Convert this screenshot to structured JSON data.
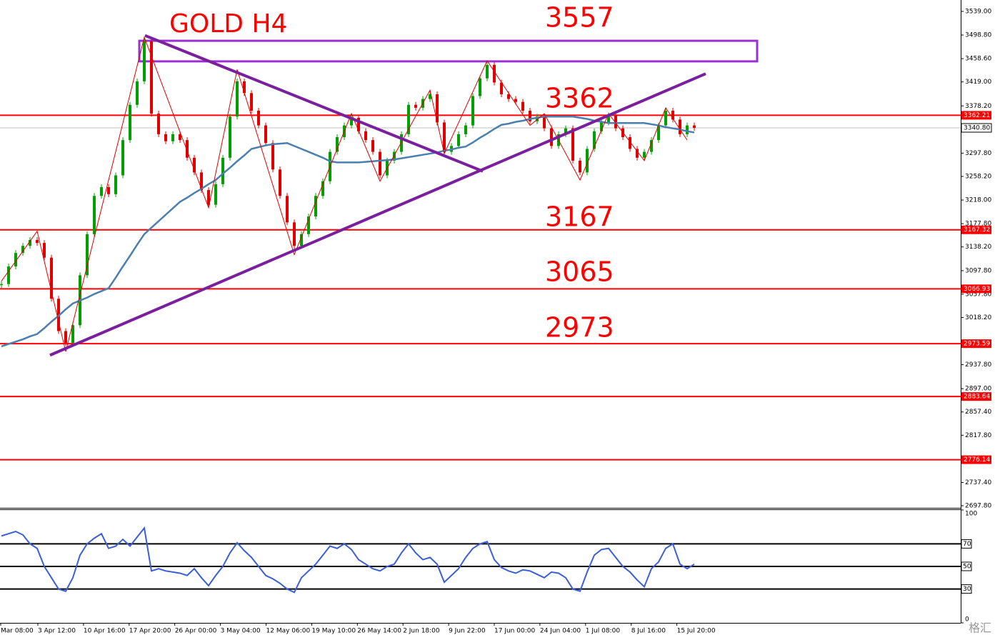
{
  "chart_data": {
    "type": "candlestick",
    "annotations": [
      "GOLD H4",
      "3557",
      "3362",
      "3167",
      "3065",
      "2973"
    ],
    "ylim": [
      2695.4,
      3558.4
    ],
    "yticks": [
      {
        "value": 3539,
        "label": "3539.00"
      },
      {
        "value": 3498.8,
        "label": "3498.80"
      },
      {
        "value": 3458.6,
        "label": "3458.60"
      },
      {
        "value": 3419,
        "label": "3419.00"
      },
      {
        "value": 3378.2,
        "label": "3378.20"
      },
      {
        "value": 3297.8,
        "label": "3297.80"
      },
      {
        "value": 3258.2,
        "label": "3258.20"
      },
      {
        "value": 3218,
        "label": "3218.00"
      },
      {
        "value": 3177.8,
        "label": "3177.80"
      },
      {
        "value": 3138.2,
        "label": "3138.20"
      },
      {
        "value": 3097.8,
        "label": "3097.80"
      },
      {
        "value": 3057.8,
        "label": "3057.80"
      },
      {
        "value": 3018.2,
        "label": "3018.20"
      },
      {
        "value": 2937.8,
        "label": "2937.80"
      },
      {
        "value": 2897,
        "label": "2897.00"
      },
      {
        "value": 2857.4,
        "label": "2857.40"
      },
      {
        "value": 2817.8,
        "label": "2817.80"
      },
      {
        "value": 2737.4,
        "label": "2737.40"
      },
      {
        "value": 2697.8,
        "label": "2697.80"
      }
    ],
    "x_labels": [
      "Mar 08:00",
      "3 Apr 12:00",
      "10 Apr 16:00",
      "17 Apr 20:00",
      "26 Apr 00:00",
      "3 May 04:00",
      "12 May 06:00",
      "19 May 10:00",
      "26 May 14:00",
      "2 Jun 18:00",
      "9 Jun 22:00",
      "17 Jun 00:00",
      "24 Jun 04:00",
      "1 Jul 08:00",
      "8 Jul 16:00",
      "15 Jul 20:00"
    ],
    "up_color": "#00a000",
    "down_color": "#e00000",
    "closes": [
      3075,
      3105,
      3128,
      3140,
      3150,
      3145,
      3120,
      3050,
      2995,
      2975,
      3005,
      3090,
      3160,
      3225,
      3240,
      3228,
      3260,
      3320,
      3380,
      3420,
      3488,
      3365,
      3330,
      3318,
      3330,
      3320,
      3290,
      3265,
      3235,
      3210,
      3245,
      3290,
      3360,
      3420,
      3400,
      3370,
      3345,
      3315,
      3270,
      3225,
      3180,
      3140,
      3160,
      3190,
      3225,
      3250,
      3300,
      3325,
      3345,
      3358,
      3335,
      3320,
      3300,
      3260,
      3285,
      3300,
      3330,
      3380,
      3375,
      3390,
      3398,
      3350,
      3300,
      3310,
      3330,
      3345,
      3395,
      3425,
      3448,
      3418,
      3398,
      3390,
      3385,
      3370,
      3352,
      3360,
      3340,
      3310,
      3330,
      3340,
      3285,
      3265,
      3305,
      3335,
      3350,
      3362,
      3340,
      3325,
      3305,
      3290,
      3300,
      3320,
      3345,
      3370,
      3355,
      3330,
      3345,
      3340.8
    ],
    "ma": {
      "color": "#4a7fb0",
      "values": [
        2969,
        2973,
        2977,
        2981,
        2986,
        2990,
        3000,
        3011,
        3021,
        3032,
        3042,
        3047,
        3052,
        3058,
        3063,
        3068,
        3086,
        3105,
        3123,
        3142,
        3160,
        3171,
        3182,
        3193,
        3204,
        3215,
        3222,
        3230,
        3237,
        3245,
        3252,
        3263,
        3273,
        3284,
        3294,
        3305,
        3308,
        3311,
        3313,
        3314,
        3315,
        3310,
        3305,
        3300,
        3295,
        3290,
        3284,
        3282,
        3282,
        3282,
        3282,
        3283,
        3284,
        3285,
        3286,
        3287,
        3289,
        3291,
        3293,
        3295,
        3297,
        3299,
        3302,
        3304,
        3307,
        3309,
        3316,
        3324,
        3331,
        3339,
        3346,
        3348,
        3351,
        3353,
        3356,
        3358,
        3360,
        3360,
        3360,
        3360,
        3360,
        3358,
        3356,
        3353,
        3351,
        3349,
        3349,
        3349,
        3349,
        3349,
        3349,
        3347,
        3345,
        3342,
        3340,
        3338,
        3335,
        3333
      ]
    },
    "zigzag": {
      "color": "#e00000",
      "x": [
        0,
        5,
        9,
        20,
        29,
        33,
        41,
        49,
        53,
        60,
        62,
        68,
        74,
        76,
        81,
        85,
        90,
        93,
        96
      ],
      "values": [
        3080,
        3165,
        2960,
        3495,
        3205,
        3440,
        3125,
        3365,
        3250,
        3405,
        3297,
        3455,
        3345,
        3365,
        3252,
        3365,
        3285,
        3375,
        3320
      ]
    },
    "trendlines": [
      {
        "color": "#7a1f9e",
        "x": [
          6.8,
          98.6
        ],
        "values": [
          2954,
          3433
        ]
      },
      {
        "color": "#7a1f9e",
        "x": [
          20.1,
          67.4
        ],
        "values": [
          3498,
          3267
        ]
      }
    ],
    "box": {
      "color": "#9b30d0",
      "x": [
        19.3,
        105.8
      ],
      "values": [
        3489,
        3454
      ]
    },
    "level_color": "#ff0000",
    "levels": [
      3362.21,
      3167.32,
      3066.93,
      2973.59,
      2883.64,
      2776.14
    ],
    "current": {
      "value": 3340.8,
      "label": "3340.80"
    },
    "rsi": {
      "color": "#3a5fd9",
      "ylim": [
        0,
        100
      ],
      "yticks": [
        100,
        0
      ],
      "levels": [
        70,
        50,
        30
      ],
      "values": [
        77,
        79,
        81,
        78,
        70,
        66,
        50,
        40,
        30,
        28,
        40,
        60,
        70,
        75,
        79,
        66,
        68,
        74,
        68,
        76,
        84,
        46,
        48,
        46,
        45,
        44,
        42,
        48,
        40,
        33,
        42,
        50,
        62,
        71,
        64,
        58,
        50,
        42,
        39,
        35,
        30,
        27,
        40,
        46,
        52,
        60,
        68,
        66,
        70,
        65,
        56,
        52,
        48,
        46,
        50,
        52,
        62,
        70,
        62,
        56,
        58,
        52,
        36,
        42,
        48,
        58,
        66,
        70,
        72,
        56,
        49,
        46,
        44,
        47,
        46,
        43,
        40,
        45,
        44,
        40,
        30,
        28,
        45,
        60,
        65,
        66,
        58,
        50,
        45,
        38,
        32,
        48,
        54,
        66,
        70,
        52,
        48,
        52
      ]
    },
    "watermark": "格汇"
  }
}
